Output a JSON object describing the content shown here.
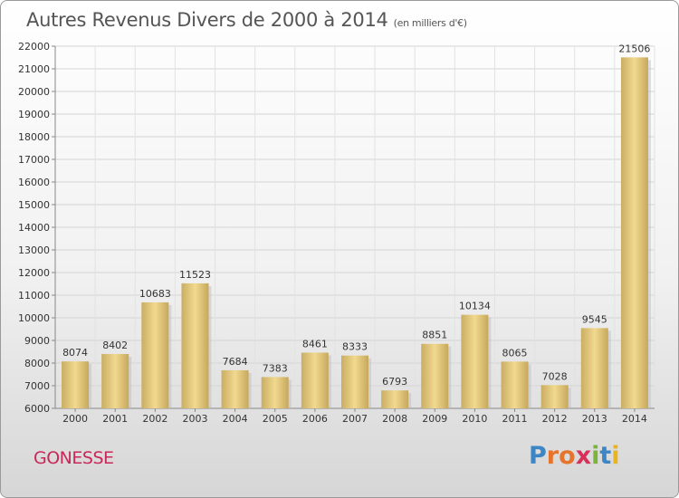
{
  "header": {
    "title": "Autres Revenus Divers de 2000 à 2014",
    "subtitle": "(en milliers d'€)"
  },
  "footer": {
    "town": "GONESSE",
    "logo_letters": [
      "P",
      "r",
      "o",
      "x",
      "i",
      "t",
      "i"
    ],
    "logo_colors": [
      "#3d86c6",
      "#e8732a",
      "#e8732a",
      "#d9305a",
      "#7bb43a",
      "#3d86c6",
      "#e8b420"
    ]
  },
  "chart_data": {
    "type": "bar",
    "categories": [
      "2000",
      "2001",
      "2002",
      "2003",
      "2004",
      "2005",
      "2006",
      "2007",
      "2008",
      "2009",
      "2010",
      "2011",
      "2012",
      "2013",
      "2014"
    ],
    "values": [
      8074,
      8402,
      10683,
      11523,
      7684,
      7383,
      8461,
      8333,
      6793,
      8851,
      10134,
      8065,
      7028,
      9545,
      21506
    ],
    "ylim": [
      6000,
      22000
    ],
    "yticks": [
      6000,
      7000,
      8000,
      9000,
      10000,
      11000,
      12000,
      13000,
      14000,
      15000,
      16000,
      17000,
      18000,
      19000,
      20000,
      21000,
      22000
    ],
    "grid": true,
    "bar_color": "#e6c97a",
    "xlabel": "",
    "ylabel": ""
  }
}
